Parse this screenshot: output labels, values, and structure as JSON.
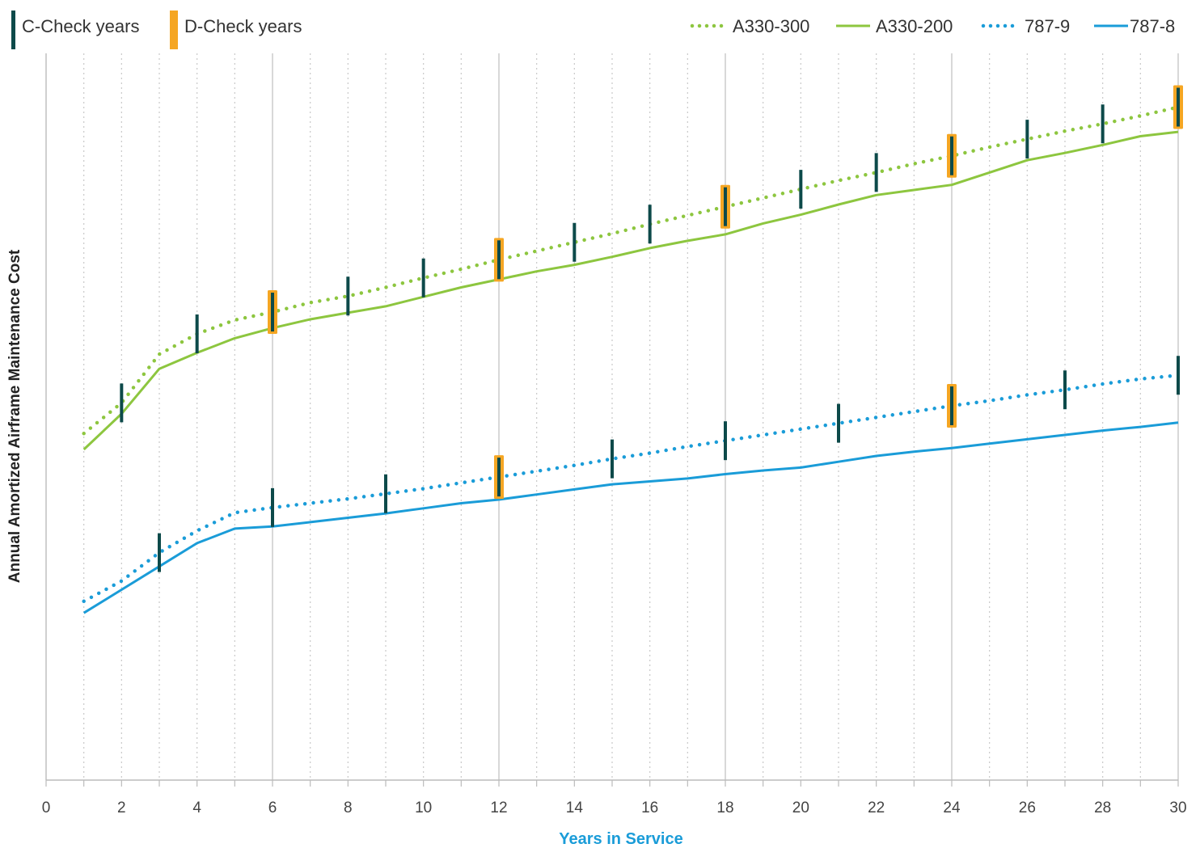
{
  "chart_data": {
    "type": "line",
    "title": "",
    "xlabel": "Years in Service",
    "ylabel": "Annual Amortized Airframe Maintenance Cost",
    "xlim": [
      0,
      30
    ],
    "ylim": [
      0,
      100
    ],
    "x_ticks": [
      0,
      2,
      4,
      6,
      8,
      10,
      12,
      14,
      16,
      18,
      20,
      22,
      24,
      26,
      28,
      30
    ],
    "grid": "vertical",
    "colors": {
      "green": "#8dc63f",
      "blue": "#1a9cd8",
      "c_check": "#0d4a4a",
      "d_check": "#f5a623",
      "axis": "#bbbbbb",
      "xlabel": "#1a9cd8"
    },
    "check_legend": [
      {
        "name": "C-Check years",
        "color": "#0d4a4a"
      },
      {
        "name": "D-Check years",
        "color": "#f5a623"
      }
    ],
    "series": [
      {
        "name": "A330-300",
        "style": "dotted",
        "color": "#8dc63f",
        "points": [
          [
            1,
            47.7
          ],
          [
            2,
            51.9
          ],
          [
            3,
            58.6
          ],
          [
            4,
            61.4
          ],
          [
            5,
            63.3
          ],
          [
            6,
            64.4
          ],
          [
            7,
            65.7
          ],
          [
            8,
            66.6
          ],
          [
            9,
            67.8
          ],
          [
            10,
            69.1
          ],
          [
            11,
            70.3
          ],
          [
            12,
            71.6
          ],
          [
            13,
            72.8
          ],
          [
            14,
            74.0
          ],
          [
            15,
            75.2
          ],
          [
            16,
            76.5
          ],
          [
            17,
            77.7
          ],
          [
            18,
            78.9
          ],
          [
            19,
            80.1
          ],
          [
            20,
            81.3
          ],
          [
            21,
            82.5
          ],
          [
            22,
            83.6
          ],
          [
            23,
            84.8
          ],
          [
            24,
            85.9
          ],
          [
            25,
            87.1
          ],
          [
            26,
            88.2
          ],
          [
            27,
            89.3
          ],
          [
            28,
            90.3
          ],
          [
            29,
            91.4
          ],
          [
            30,
            92.6
          ]
        ]
      },
      {
        "name": "A330-200",
        "style": "solid",
        "color": "#8dc63f",
        "points": [
          [
            1,
            45.5
          ],
          [
            2,
            50.4
          ],
          [
            3,
            56.6
          ],
          [
            4,
            58.8
          ],
          [
            5,
            60.8
          ],
          [
            6,
            62.2
          ],
          [
            7,
            63.4
          ],
          [
            8,
            64.3
          ],
          [
            9,
            65.2
          ],
          [
            10,
            66.5
          ],
          [
            11,
            67.8
          ],
          [
            12,
            68.9
          ],
          [
            13,
            70.0
          ],
          [
            14,
            70.9
          ],
          [
            15,
            72.0
          ],
          [
            16,
            73.2
          ],
          [
            17,
            74.2
          ],
          [
            18,
            75.1
          ],
          [
            19,
            76.6
          ],
          [
            20,
            77.8
          ],
          [
            21,
            79.2
          ],
          [
            22,
            80.5
          ],
          [
            23,
            81.2
          ],
          [
            24,
            81.9
          ],
          [
            25,
            83.6
          ],
          [
            26,
            85.3
          ],
          [
            27,
            86.3
          ],
          [
            28,
            87.4
          ],
          [
            29,
            88.6
          ],
          [
            30,
            89.2
          ]
        ]
      },
      {
        "name": "787-9",
        "style": "dotted",
        "color": "#1a9cd8",
        "points": [
          [
            1,
            24.6
          ],
          [
            2,
            27.4
          ],
          [
            3,
            31.3
          ],
          [
            4,
            34.3
          ],
          [
            5,
            36.8
          ],
          [
            6,
            37.5
          ],
          [
            7,
            38.1
          ],
          [
            8,
            38.7
          ],
          [
            9,
            39.4
          ],
          [
            10,
            40.1
          ],
          [
            11,
            40.9
          ],
          [
            12,
            41.7
          ],
          [
            13,
            42.5
          ],
          [
            14,
            43.3
          ],
          [
            15,
            44.2
          ],
          [
            16,
            45.0
          ],
          [
            17,
            45.9
          ],
          [
            18,
            46.7
          ],
          [
            19,
            47.5
          ],
          [
            20,
            48.3
          ],
          [
            21,
            49.1
          ],
          [
            22,
            49.9
          ],
          [
            23,
            50.7
          ],
          [
            24,
            51.5
          ],
          [
            25,
            52.2
          ],
          [
            26,
            53.0
          ],
          [
            27,
            53.7
          ],
          [
            28,
            54.5
          ],
          [
            29,
            55.2
          ],
          [
            30,
            55.7
          ]
        ]
      },
      {
        "name": "787-8",
        "style": "solid",
        "color": "#1a9cd8",
        "points": [
          [
            1,
            23.0
          ],
          [
            2,
            26.2
          ],
          [
            3,
            29.4
          ],
          [
            4,
            32.6
          ],
          [
            5,
            34.6
          ],
          [
            6,
            34.9
          ],
          [
            7,
            35.5
          ],
          [
            8,
            36.1
          ],
          [
            9,
            36.7
          ],
          [
            10,
            37.4
          ],
          [
            11,
            38.1
          ],
          [
            12,
            38.6
          ],
          [
            13,
            39.3
          ],
          [
            14,
            40.0
          ],
          [
            15,
            40.7
          ],
          [
            16,
            41.1
          ],
          [
            17,
            41.5
          ],
          [
            18,
            42.1
          ],
          [
            19,
            42.6
          ],
          [
            20,
            43.0
          ],
          [
            21,
            43.8
          ],
          [
            22,
            44.6
          ],
          [
            23,
            45.2
          ],
          [
            24,
            45.7
          ],
          [
            25,
            46.3
          ],
          [
            26,
            46.9
          ],
          [
            27,
            47.5
          ],
          [
            28,
            48.1
          ],
          [
            29,
            48.6
          ],
          [
            30,
            49.2
          ]
        ]
      }
    ],
    "check_markers": [
      {
        "series": "A330-300",
        "c_years": [
          2,
          4,
          8,
          10,
          14,
          16,
          20,
          22,
          26,
          28
        ],
        "d_years": [
          6,
          12,
          18,
          24,
          30
        ]
      },
      {
        "series": "787-9",
        "c_years": [
          3,
          6,
          9,
          15,
          18,
          21,
          27,
          30
        ],
        "d_years": [
          12,
          24
        ]
      }
    ]
  }
}
